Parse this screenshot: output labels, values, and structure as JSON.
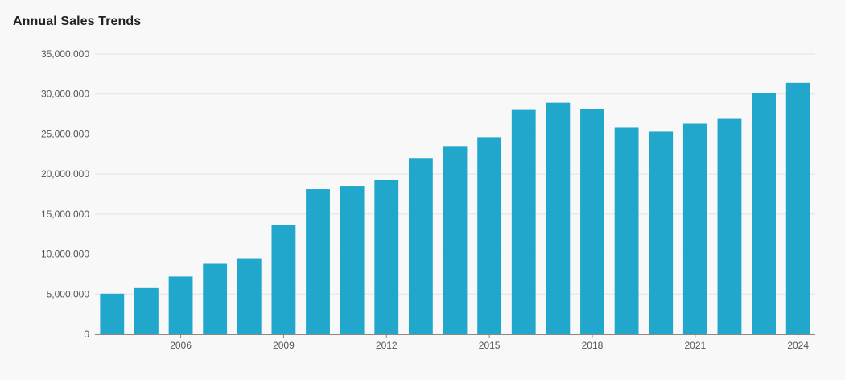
{
  "chart_data": {
    "type": "bar",
    "title": "Annual Sales Trends",
    "xlabel": "",
    "ylabel": "",
    "categories": [
      "2004",
      "2005",
      "2006",
      "2007",
      "2008",
      "2009",
      "2010",
      "2011",
      "2012",
      "2013",
      "2014",
      "2015",
      "2016",
      "2017",
      "2018",
      "2019",
      "2020",
      "2021",
      "2022",
      "2023",
      "2024"
    ],
    "values": [
      5050000,
      5750000,
      7200000,
      8800000,
      9400000,
      13650000,
      18100000,
      18500000,
      19300000,
      22000000,
      23500000,
      24600000,
      28000000,
      28900000,
      28100000,
      25800000,
      25300000,
      26300000,
      26900000,
      30100000,
      31400000
    ],
    "x_tick_labels": [
      "2006",
      "2009",
      "2012",
      "2015",
      "2018",
      "2021",
      "2024"
    ],
    "y_ticks": [
      0,
      5000000,
      10000000,
      15000000,
      20000000,
      25000000,
      30000000,
      35000000
    ],
    "y_tick_labels": [
      "0",
      "5,000,000",
      "10,000,000",
      "15,000,000",
      "20,000,000",
      "25,000,000",
      "30,000,000",
      "35,000,000"
    ],
    "ylim": [
      0,
      35000000
    ],
    "grid": true,
    "legend": "none",
    "bar_color": "#22a7cc",
    "grid_color": "#e2e2e2",
    "axis_color": "#888888"
  }
}
